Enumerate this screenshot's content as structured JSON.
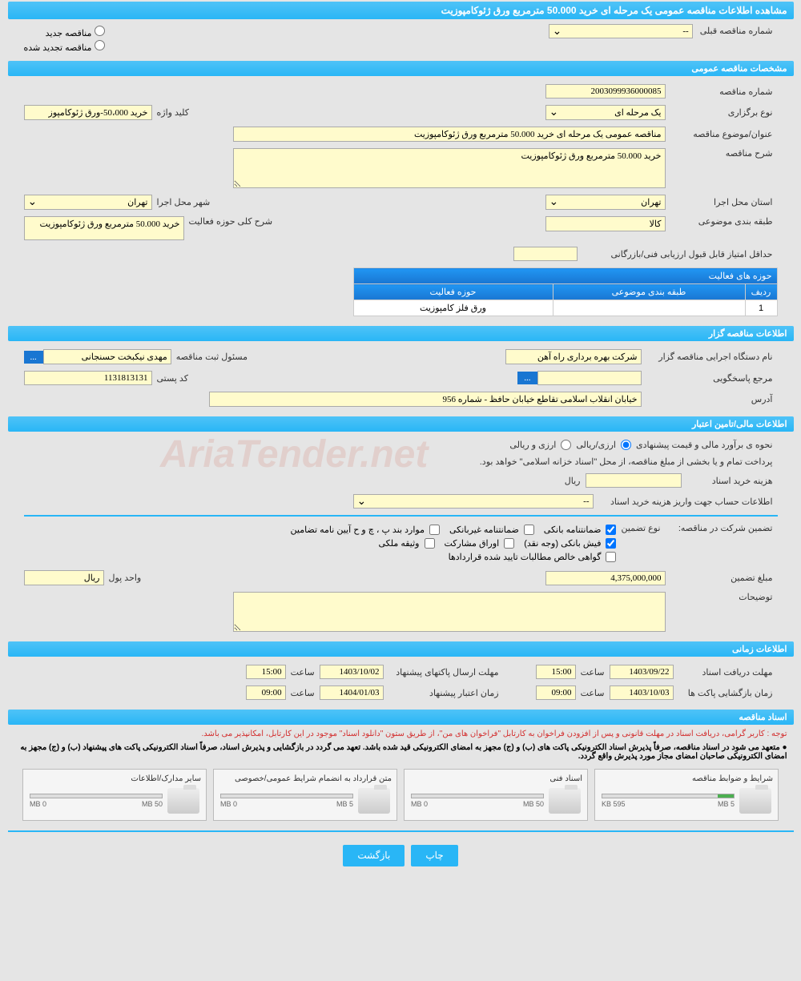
{
  "page_title": "مشاهده اطلاعات مناقصه عمومی یک مرحله ای خرید 50.000 مترمربع ورق ژئوکامپوزیت",
  "radio": {
    "new": "مناقصه جدید",
    "renewed": "مناقصه تجدید شده"
  },
  "prev_tender": {
    "label": "شماره مناقصه قبلی",
    "value": "--"
  },
  "sec1": {
    "header": "مشخصات مناقصه عمومی",
    "number_lbl": "شماره مناقصه",
    "number": "2003099936000085",
    "type_lbl": "نوع برگزاری",
    "type": "یک مرحله ای",
    "keyword_lbl": "کلید واژه",
    "keyword": "خرید 50،000-ورق ژئوکامپوز",
    "subject_lbl": "عنوان/موضوع مناقصه",
    "subject": "مناقصه عمومی یک مرحله ای خرید 50.000 مترمربع ورق ژئوکامپوزیت",
    "desc_lbl": "شرح مناقصه",
    "desc": "خرید 50.000 مترمربع ورق ژئوکامپوزیت",
    "province_lbl": "استان محل اجرا",
    "province": "تهران",
    "city_lbl": "شهر محل اجرا",
    "city": "تهران",
    "category_lbl": "طبقه بندی موضوعی",
    "category": "کالا",
    "activity_desc_lbl": "شرح کلی حوزه فعالیت",
    "activity_desc": "خرید 50.000 مترمربع ورق ژئوکامپوزیت",
    "min_score_lbl": "حداقل امتیاز قابل قبول ارزیابی فنی/بازرگانی"
  },
  "activity_table": {
    "title": "حوزه های فعالیت",
    "cols": [
      "ردیف",
      "طبقه بندی موضوعی",
      "حوزه فعالیت"
    ],
    "rows": [
      [
        "1",
        "",
        "ورق فلز کامپوزیت"
      ]
    ]
  },
  "sec2": {
    "header": "اطلاعات مناقصه گزار",
    "org_lbl": "نام دستگاه اجرایی مناقصه گزار",
    "org": "شرکت بهره برداری راه آهن",
    "officer_lbl": "مسئول ثبت مناقصه",
    "officer": "مهدی نیکبخت حسنجانی",
    "ref_lbl": "مرجع پاسخگویی",
    "ref": "",
    "postal_lbl": "کد پستی",
    "postal": "1131813131",
    "addr_lbl": "آدرس",
    "addr": "خیابان انقلاب اسلامی تقاطع خیابان حافظ - شماره 956",
    "more": "..."
  },
  "sec3": {
    "header": "اطلاعات مالی/تامین اعتبار",
    "method_lbl": "نحوه ی برآورد مالی و قیمت پیشنهادی",
    "method_opt1": "ارزی/ریالی",
    "method_opt2": "ارزی و ریالی",
    "payment_note": "پرداخت تمام و یا بخشی از مبلغ مناقصه، از محل \"اسناد خزانه اسلامی\" خواهد بود.",
    "doc_cost_lbl": "هزینه خرید اسناد",
    "currency": "ریال",
    "acct_lbl": "اطلاعات حساب جهت واریز هزینه خرید اسناد",
    "acct": "--",
    "guarantee_lbl": "تضمین شرکت در مناقصه:",
    "guarantee_type_lbl": "نوع تضمین",
    "g1": "ضمانتنامه بانکی",
    "g2": "ضمانتنامه غیربانکی",
    "g3": "موارد بند پ ، چ و ح آیین نامه تضامین",
    "g4": "فیش بانکی (وجه نقد)",
    "g5": "اوراق مشارکت",
    "g6": "وثیقه ملکی",
    "g7": "گواهی خالص مطالبات تایید شده قراردادها",
    "amount_lbl": "مبلغ تضمین",
    "amount": "4,375,000,000",
    "unit_lbl": "واحد پول",
    "unit": "ریال",
    "notes_lbl": "توضیحات"
  },
  "sec4": {
    "header": "اطلاعات زمانی",
    "receive_lbl": "مهلت دریافت اسناد",
    "receive_date": "1403/09/22",
    "receive_time": "15:00",
    "submit_lbl": "مهلت ارسال پاکتهای پیشنهاد",
    "submit_date": "1403/10/02",
    "submit_time": "15:00",
    "open_lbl": "زمان بازگشایی پاکت ها",
    "open_date": "1403/10/03",
    "open_time": "09:00",
    "validity_lbl": "زمان اعتبار پیشنهاد",
    "validity_date": "1404/01/03",
    "validity_time": "09:00",
    "hour_lbl": "ساعت"
  },
  "sec5": {
    "header": "اسناد مناقصه",
    "note1": "توجه : کاربر گرامی، دریافت اسناد در مهلت قانونی و پس از افزودن فراخوان به کارتابل \"فراخوان های من\"، از طریق ستون \"دانلود اسناد\" موجود در این کارتابل، امکانپذیر می باشد.",
    "note2": "● متعهد می شود در اسناد مناقصه، صرفاً پذیرش اسناد الکترونیکی پاکت های (ب) و (ج) مجهز به امضای الکترونیکی قید شده باشد. تعهد می گردد در بازگشایی و پذیرش اسناد، صرفاً اسناد الکترونیکی پاکت های پیشنهاد (ب) و (ج) مجهز به امضای الکترونیکی صاحبان امضای مجاز مورد پذیرش واقع گردد.",
    "docs": [
      {
        "title": "شرایط و ضوابط مناقصه",
        "used": "595 KB",
        "total": "5 MB",
        "pct": 12
      },
      {
        "title": "اسناد فنی",
        "used": "0 MB",
        "total": "50 MB",
        "pct": 0
      },
      {
        "title": "متن قرارداد به انضمام شرایط عمومی/خصوصی",
        "used": "0 MB",
        "total": "5 MB",
        "pct": 0
      },
      {
        "title": "سایر مدارک/اطلاعات",
        "used": "0 MB",
        "total": "50 MB",
        "pct": 0
      }
    ]
  },
  "buttons": {
    "print": "چاپ",
    "back": "بازگشت"
  },
  "watermark": "AriaTender.net"
}
